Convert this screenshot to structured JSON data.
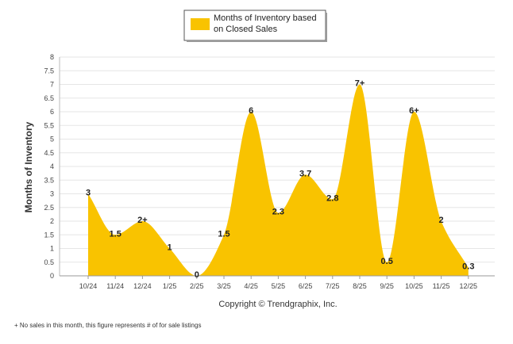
{
  "chart_data": {
    "type": "area",
    "legend": "Months of Inventory based on Closed Sales",
    "legend_lines": [
      "Months of Inventory based",
      "on Closed Sales"
    ],
    "ylabel": "Months of Inventory",
    "xlabel": "",
    "ylim": [
      0,
      8
    ],
    "y_ticks": [
      "0",
      "0.5",
      "1",
      "1.5",
      "2",
      "2.5",
      "3",
      "3.5",
      "4",
      "4.5",
      "5",
      "5.5",
      "6",
      "6.5",
      "7",
      "7.5",
      "8"
    ],
    "y_tick_values": [
      0,
      0.5,
      1,
      1.5,
      2,
      2.5,
      3,
      3.5,
      4,
      4.5,
      5,
      5.5,
      6,
      6.5,
      7,
      7.5,
      8
    ],
    "categories": [
      "10/24",
      "11/24",
      "12/24",
      "1/25",
      "2/25",
      "3/25",
      "4/25",
      "5/25",
      "6/25",
      "7/25",
      "8/25",
      "9/25",
      "10/25",
      "11/25",
      "12/25"
    ],
    "values": [
      3,
      1.5,
      2,
      1,
      0,
      1.5,
      6,
      2.3,
      3.7,
      2.8,
      7,
      0.5,
      6,
      2,
      0.3
    ],
    "data_labels": [
      "3",
      "1.5",
      "2+",
      "1",
      "0",
      "1.5",
      "6",
      "2.3",
      "3.7",
      "2.8",
      "7+",
      "0.5",
      "6+",
      "2",
      "0.3"
    ],
    "series_color": "#F9C300",
    "grid": true
  },
  "copyright": "Copyright © Trendgraphix, Inc.",
  "footnote": "+  No sales in this month, this figure represents # of for sale listings"
}
